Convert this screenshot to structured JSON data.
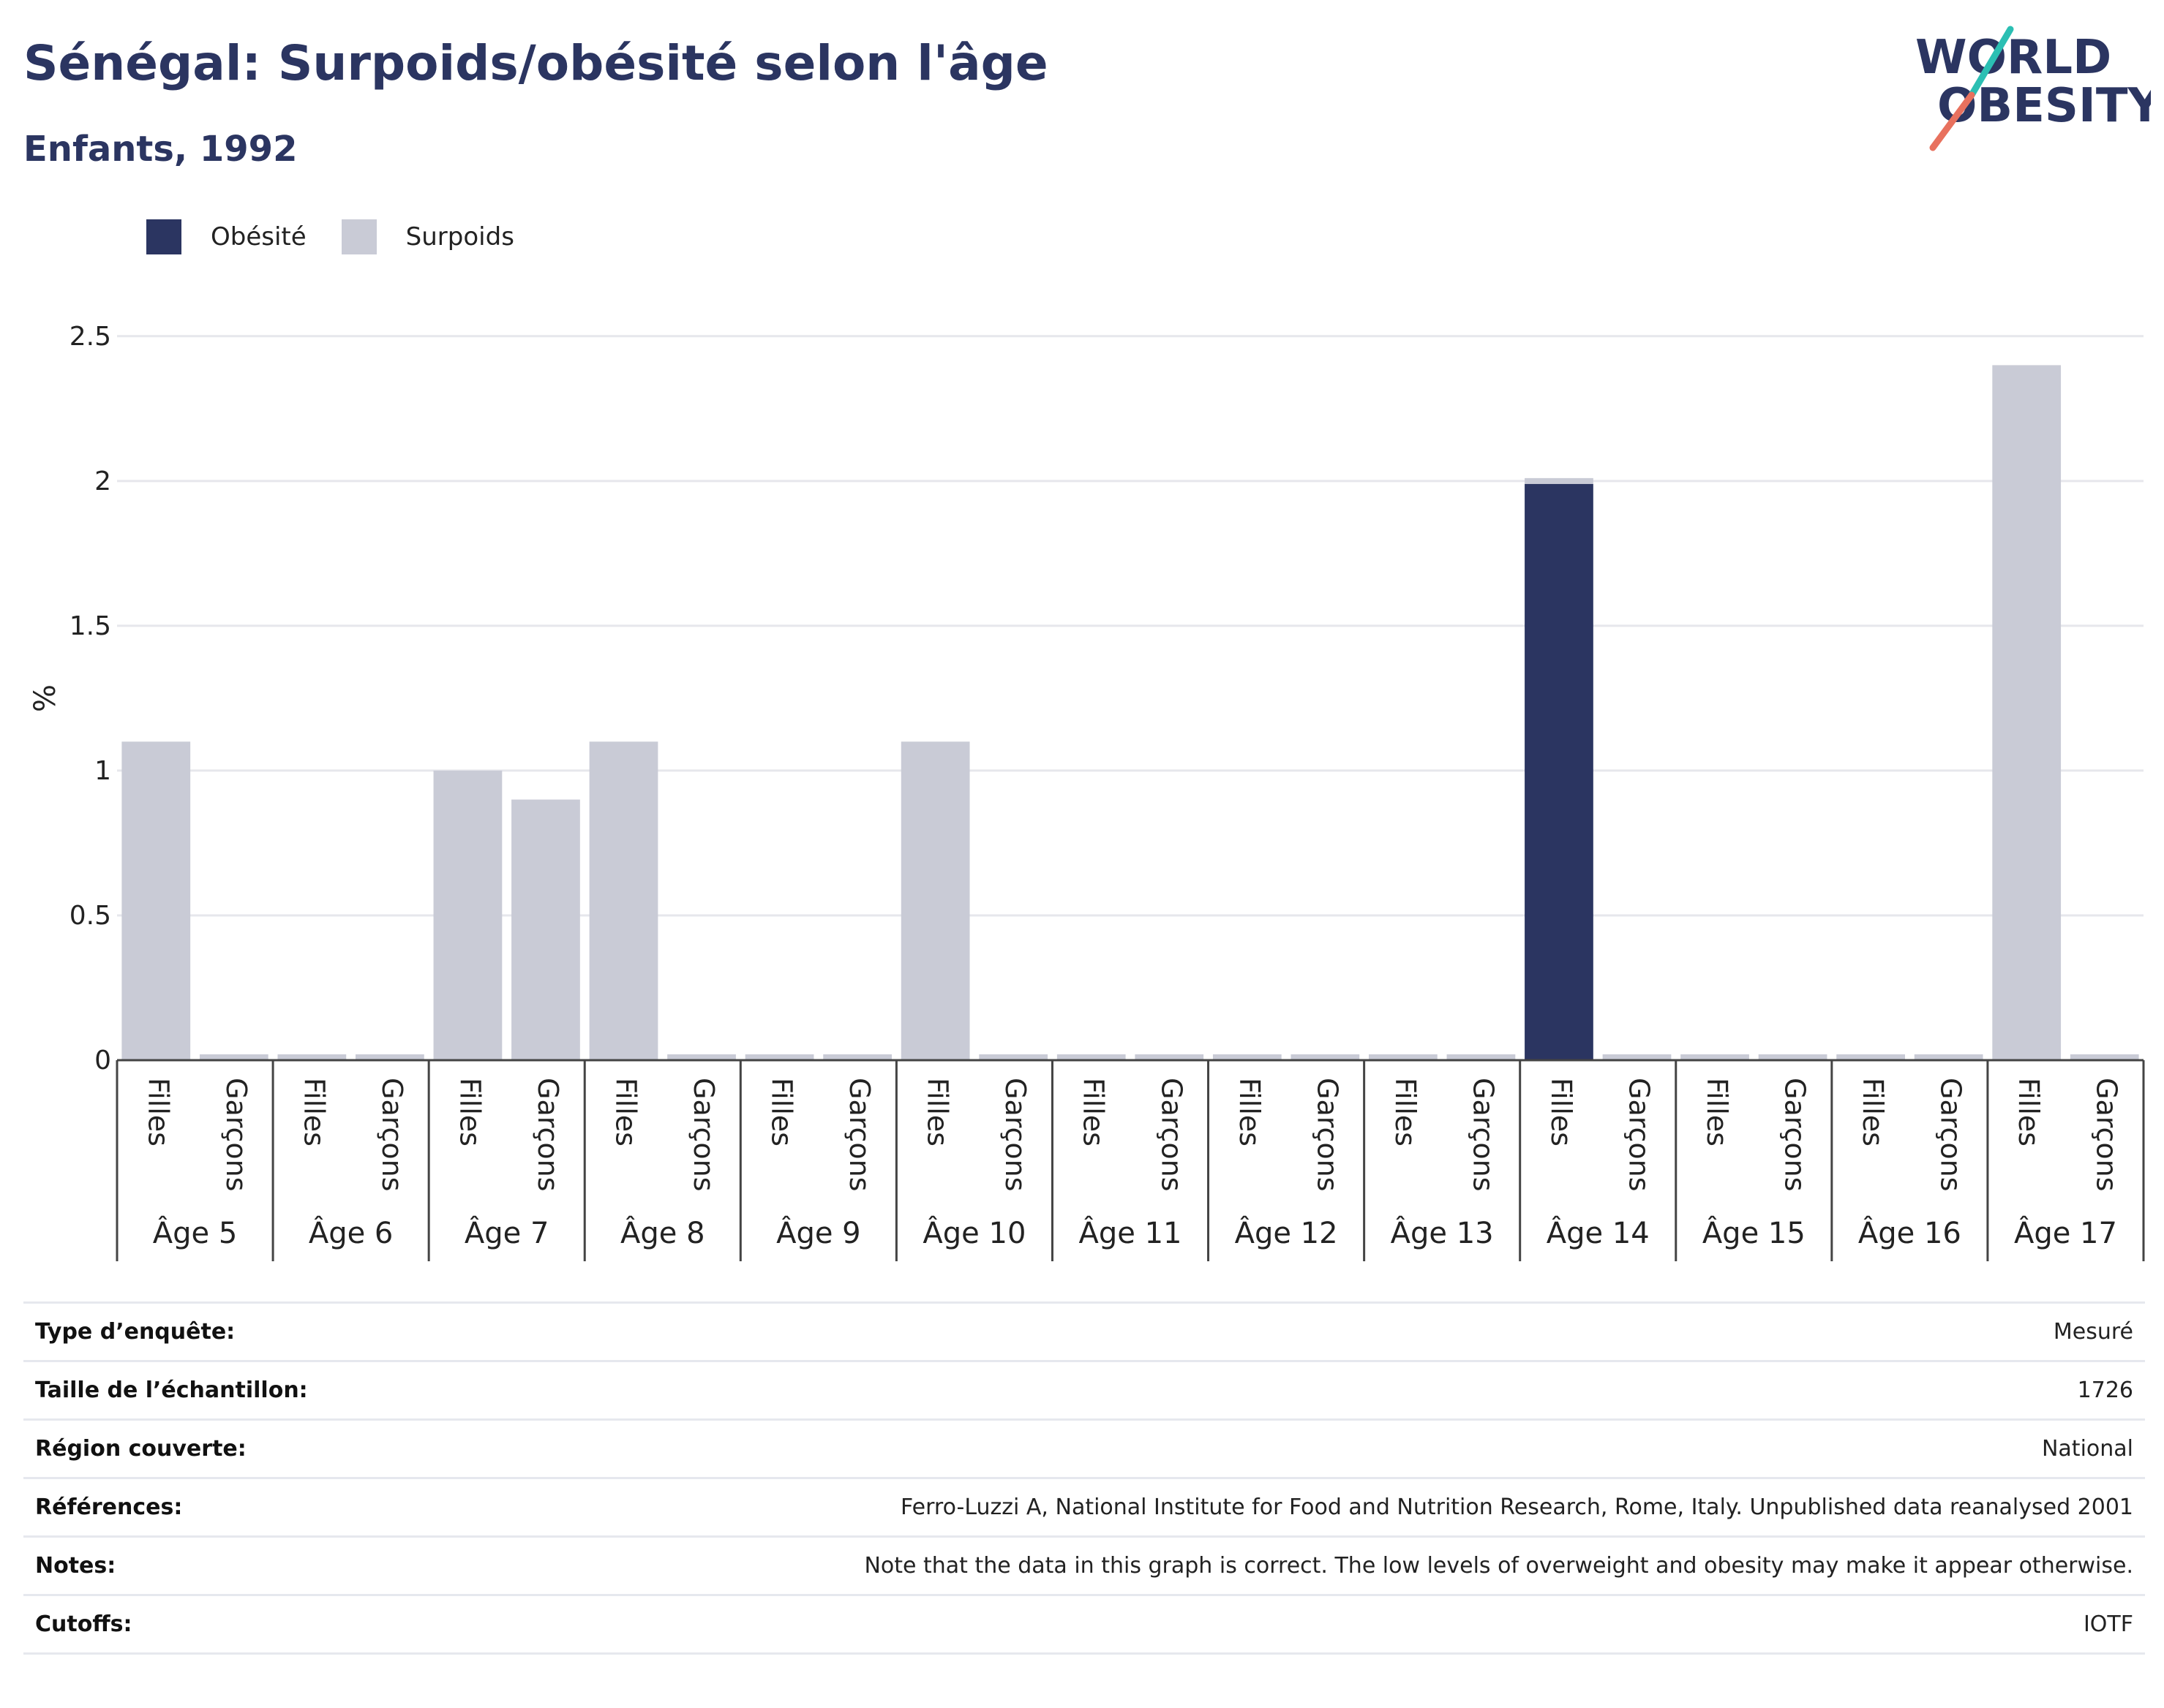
{
  "header": {
    "title": "Sénégal: Surpoids/obésité selon l'âge",
    "subtitle": "Enfants, 1992"
  },
  "logo": {
    "line1": "WORLD",
    "line2": "OBESITY"
  },
  "colors": {
    "obesity": "#2b3561",
    "overweight": "#c9cbd6",
    "brand_teal": "#2bbfb3",
    "brand_coral": "#e8715e"
  },
  "chart_data": {
    "type": "bar",
    "stacked": true,
    "ylabel": "%",
    "ylim": [
      0,
      2.55
    ],
    "yticks": [
      "0",
      "0.5",
      "1",
      "1.5",
      "2",
      "2.5"
    ],
    "grid": true,
    "legend_position": "top-left",
    "groups": [
      "Âge 5",
      "Âge 6",
      "Âge 7",
      "Âge 8",
      "Âge 9",
      "Âge 10",
      "Âge 11",
      "Âge 12",
      "Âge 13",
      "Âge 14",
      "Âge 15",
      "Âge 16",
      "Âge 17"
    ],
    "subcategories": [
      "Filles",
      "Garçons"
    ],
    "series": [
      {
        "name": "Obésité",
        "values": [
          0,
          0,
          0,
          0,
          0,
          0,
          0,
          0,
          0,
          0,
          0,
          0,
          0,
          0,
          0,
          0,
          0,
          0,
          1.99,
          0,
          0,
          0,
          0,
          0,
          0,
          0
        ]
      },
      {
        "name": "Surpoids",
        "values": [
          1.1,
          0,
          0,
          0,
          1.0,
          0.9,
          1.1,
          0,
          0,
          0,
          1.1,
          0,
          0,
          0,
          0,
          0,
          0,
          0,
          0.02,
          0,
          0,
          0,
          0,
          0,
          2.4,
          0
        ]
      }
    ]
  },
  "info": [
    {
      "label": "Type d’enquête:",
      "value": "Mesuré"
    },
    {
      "label": "Taille de l’échantillon:",
      "value": "1726"
    },
    {
      "label": "Région couverte:",
      "value": "National"
    },
    {
      "label": "Références:",
      "value": "Ferro-Luzzi A, National Institute for Food and Nutrition Research, Rome, Italy. Unpublished data reanalysed 2001"
    },
    {
      "label": "Notes:",
      "value": "Note that the data in this graph is correct. The low levels of overweight and obesity may make it appear otherwise."
    },
    {
      "label": "Cutoffs:",
      "value": "IOTF"
    }
  ]
}
